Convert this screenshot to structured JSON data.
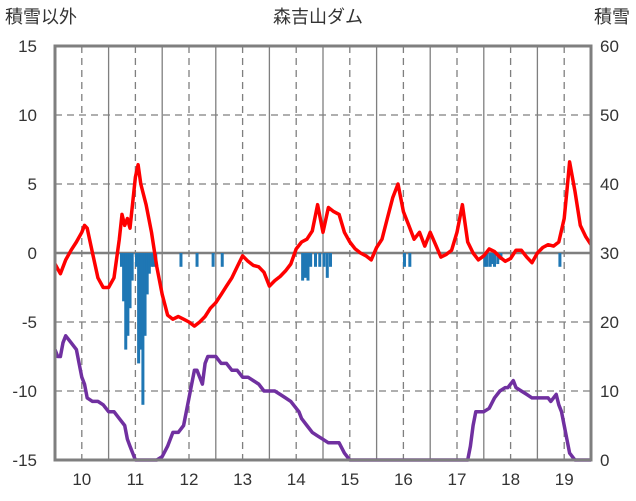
{
  "chart_data": {
    "type": "line",
    "title": "森吉山ダム",
    "left_axis_title": "積雪以外",
    "right_axis_title": "積雪",
    "x_ticks": [
      10,
      11,
      12,
      13,
      14,
      15,
      16,
      17,
      18,
      19
    ],
    "xlim": [
      9.5,
      19.5
    ],
    "y_left": {
      "ticks": [
        -15,
        -10,
        -5,
        0,
        5,
        10,
        15
      ],
      "range": [
        -15,
        15
      ]
    },
    "y_right": {
      "ticks": [
        0,
        10,
        20,
        30,
        40,
        50,
        60
      ],
      "range": [
        0,
        60
      ]
    },
    "colors": {
      "red": "#ff0000",
      "blue": "#1f77b4",
      "purple": "#7030a0",
      "grid": "#7f7f7f"
    },
    "series": [
      {
        "color_key": "red",
        "axis": "left",
        "x": [
          9.5,
          9.6,
          9.7,
          9.8,
          9.9,
          10.0,
          10.05,
          10.1,
          10.2,
          10.3,
          10.4,
          10.5,
          10.6,
          10.7,
          10.75,
          10.8,
          10.85,
          10.9,
          11.0,
          11.05,
          11.1,
          11.2,
          11.3,
          11.4,
          11.5,
          11.6,
          11.7,
          11.8,
          11.9,
          12.0,
          12.1,
          12.2,
          12.3,
          12.4,
          12.5,
          12.6,
          12.7,
          12.8,
          12.9,
          13.0,
          13.1,
          13.2,
          13.3,
          13.4,
          13.5,
          13.6,
          13.7,
          13.8,
          13.9,
          14.0,
          14.1,
          14.2,
          14.3,
          14.4,
          14.5,
          14.6,
          14.7,
          14.8,
          14.9,
          15.0,
          15.1,
          15.2,
          15.3,
          15.4,
          15.5,
          15.6,
          15.7,
          15.8,
          15.9,
          16.0,
          16.1,
          16.2,
          16.3,
          16.4,
          16.5,
          16.6,
          16.7,
          16.8,
          16.9,
          17.0,
          17.1,
          17.2,
          17.3,
          17.4,
          17.5,
          17.6,
          17.7,
          17.8,
          17.9,
          18.0,
          18.1,
          18.2,
          18.3,
          18.4,
          18.5,
          18.6,
          18.7,
          18.8,
          18.9,
          19.0,
          19.05,
          19.1,
          19.2,
          19.3,
          19.4,
          19.5
        ],
        "y": [
          -0.8,
          -1.5,
          -0.5,
          0.2,
          0.8,
          1.5,
          2.0,
          1.8,
          0.0,
          -1.8,
          -2.5,
          -2.5,
          -1.8,
          1.0,
          2.8,
          2.0,
          2.5,
          1.8,
          5.5,
          6.4,
          5.0,
          3.5,
          1.5,
          -1.0,
          -3.0,
          -4.5,
          -4.8,
          -4.6,
          -4.8,
          -5.0,
          -5.3,
          -5.0,
          -4.6,
          -4.0,
          -3.6,
          -3.0,
          -2.4,
          -1.8,
          -1.0,
          -0.2,
          -0.6,
          -0.9,
          -1.0,
          -1.4,
          -2.4,
          -2.0,
          -1.7,
          -1.3,
          -0.8,
          0.3,
          0.8,
          1.0,
          1.6,
          3.5,
          1.5,
          3.3,
          3.0,
          2.8,
          1.5,
          0.8,
          0.3,
          0.0,
          -0.2,
          -0.5,
          0.4,
          1.0,
          2.5,
          4.0,
          5.0,
          3.0,
          2.0,
          1.0,
          1.5,
          0.5,
          1.5,
          0.6,
          -0.3,
          -0.1,
          0.2,
          1.5,
          3.5,
          0.8,
          0.0,
          -0.5,
          -0.2,
          0.3,
          0.1,
          -0.3,
          -0.6,
          -0.4,
          0.2,
          0.2,
          -0.3,
          -0.7,
          0.0,
          0.4,
          0.6,
          0.5,
          0.8,
          2.5,
          4.5,
          6.6,
          4.5,
          2.0,
          1.2,
          0.6
        ]
      },
      {
        "color_key": "blue",
        "axis": "left",
        "type": "bar",
        "x": [
          10.74,
          10.78,
          10.82,
          10.86,
          10.9,
          10.94,
          11.02,
          11.06,
          11.1,
          11.14,
          11.18,
          11.22,
          11.26,
          11.3,
          11.34,
          11.38,
          11.85,
          12.15,
          12.45,
          12.62,
          14.12,
          14.17,
          14.22,
          14.27,
          14.36,
          14.44,
          14.52,
          14.58,
          14.64,
          16.02,
          16.12,
          17.52,
          17.56,
          17.62,
          17.66,
          17.7,
          17.76,
          17.82,
          18.92
        ],
        "y": [
          -1.0,
          -3.5,
          -7.0,
          -6.0,
          -4.0,
          -2.0,
          -1.0,
          -8.0,
          -7.0,
          -11.0,
          -6.0,
          -3.0,
          -1.5,
          -1.0,
          -1.0,
          -0.5,
          -1.0,
          -1.0,
          -1.0,
          -1.0,
          -2.0,
          -1.8,
          -2.0,
          -1.0,
          -1.0,
          -1.0,
          -1.0,
          -1.8,
          -1.0,
          -1.0,
          -1.0,
          -1.0,
          -1.0,
          -1.0,
          -0.8,
          -1.0,
          -0.8,
          -0.5,
          -1.0
        ]
      },
      {
        "color_key": "purple",
        "axis": "right",
        "x": [
          9.5,
          9.55,
          9.6,
          9.65,
          9.7,
          9.8,
          9.9,
          9.95,
          10.0,
          10.05,
          10.1,
          10.2,
          10.3,
          10.4,
          10.5,
          10.6,
          10.7,
          10.8,
          10.85,
          10.9,
          10.95,
          11.0,
          11.05,
          11.1,
          11.2,
          11.3,
          11.4,
          11.5,
          11.6,
          11.7,
          11.75,
          11.8,
          11.9,
          12.0,
          12.05,
          12.1,
          12.15,
          12.2,
          12.25,
          12.3,
          12.35,
          12.4,
          12.5,
          12.6,
          12.7,
          12.8,
          12.9,
          13.0,
          13.1,
          13.2,
          13.3,
          13.4,
          13.5,
          13.6,
          13.7,
          13.8,
          13.9,
          14.0,
          14.05,
          14.1,
          14.2,
          14.3,
          14.4,
          14.5,
          14.6,
          14.7,
          14.8,
          14.9,
          15.0,
          16.0,
          17.0,
          17.2,
          17.25,
          17.3,
          17.35,
          17.4,
          17.5,
          17.6,
          17.7,
          17.8,
          17.9,
          17.95,
          18.0,
          18.05,
          18.1,
          18.2,
          18.3,
          18.4,
          18.5,
          18.6,
          18.7,
          18.75,
          18.8,
          18.85,
          18.9,
          18.95,
          19.0,
          19.05,
          19.1,
          19.2,
          19.3,
          19.4,
          19.5
        ],
        "y": [
          16,
          15,
          15,
          17,
          18,
          17,
          16,
          14,
          12,
          11,
          9,
          8.5,
          8.5,
          8,
          7,
          7,
          6,
          5,
          3,
          2,
          1,
          0,
          0,
          0,
          0,
          0,
          0,
          0.5,
          2,
          4,
          4,
          4,
          5,
          9,
          11,
          13,
          13,
          12,
          11,
          14,
          15,
          15,
          15,
          14,
          14,
          13,
          13,
          12,
          12,
          11.5,
          11,
          10,
          10,
          10,
          9.5,
          9,
          8.5,
          7.5,
          7,
          6,
          5,
          4,
          3.5,
          3,
          2.5,
          2.5,
          2.5,
          1.0,
          0,
          0,
          0,
          0,
          2,
          5,
          7,
          7,
          7,
          7.5,
          9,
          10,
          10.5,
          10.5,
          11,
          11.5,
          10.5,
          10,
          9.5,
          9,
          9,
          9,
          9,
          8.5,
          9,
          9.5,
          8,
          7,
          5,
          3,
          1,
          0,
          0,
          0,
          0
        ]
      }
    ]
  }
}
